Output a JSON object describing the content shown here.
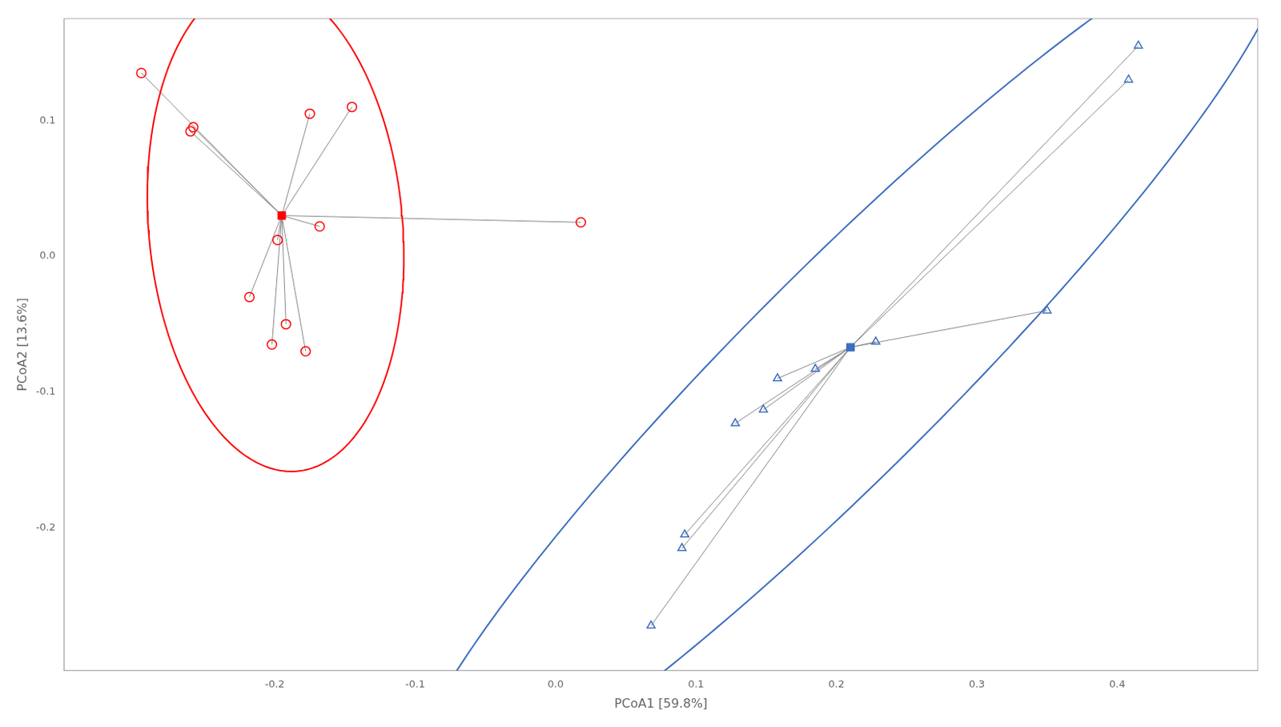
{
  "chart_data": {
    "type": "scatter",
    "xlabel": "PCoA1 [59.8%]",
    "ylabel": "PCoA2 [13.6%]",
    "xlim": [
      -0.35,
      0.5
    ],
    "ylim": [
      -0.305,
      0.175
    ],
    "xticks": [
      -0.2,
      -0.1,
      {
        "value": 0,
        "label": "0.0"
      },
      0.1,
      0.2,
      0.3,
      0.4
    ],
    "yticks": [
      -0.2,
      -0.1,
      {
        "value": 0,
        "label": "0.0"
      },
      0.1
    ],
    "grid": false,
    "spokes": {
      "color": "#888888"
    },
    "series": [
      {
        "color": "#FF0000",
        "marker": "circle",
        "x": [
          -0.295,
          -0.258,
          -0.26,
          -0.175,
          -0.145,
          -0.168,
          -0.198,
          -0.218,
          -0.192,
          -0.202,
          -0.178,
          0.018
        ],
        "y": [
          0.135,
          0.095,
          0.092,
          0.105,
          0.11,
          0.022,
          0.012,
          -0.03,
          -0.05,
          -0.065,
          -0.07,
          0.025
        ],
        "centroid": {
          "x": -0.195,
          "y": 0.03,
          "marker": "square"
        },
        "ellipse": {
          "center": [
            -0.1994,
            0.0221
          ],
          "width": 0.362046,
          "height": 0.180879,
          "angle": 94.73
        }
      },
      {
        "color": "#3D6FBF",
        "marker": "triangle",
        "x": [
          0.415,
          0.408,
          0.35,
          0.228,
          0.185,
          0.158,
          0.148,
          0.128,
          0.092,
          0.09,
          0.068
        ],
        "y": [
          0.155,
          0.13,
          -0.04,
          -0.063,
          -0.083,
          -0.09,
          -0.113,
          -0.123,
          -0.205,
          -0.215,
          -0.272
        ],
        "centroid": {
          "x": 0.21,
          "y": -0.067,
          "marker": "square"
        },
        "ellipse": {
          "center": [
            0.206364,
            -0.083545
          ],
          "width": 0.888937,
          "height": 0.14792,
          "angle": 46.02
        }
      }
    ]
  }
}
